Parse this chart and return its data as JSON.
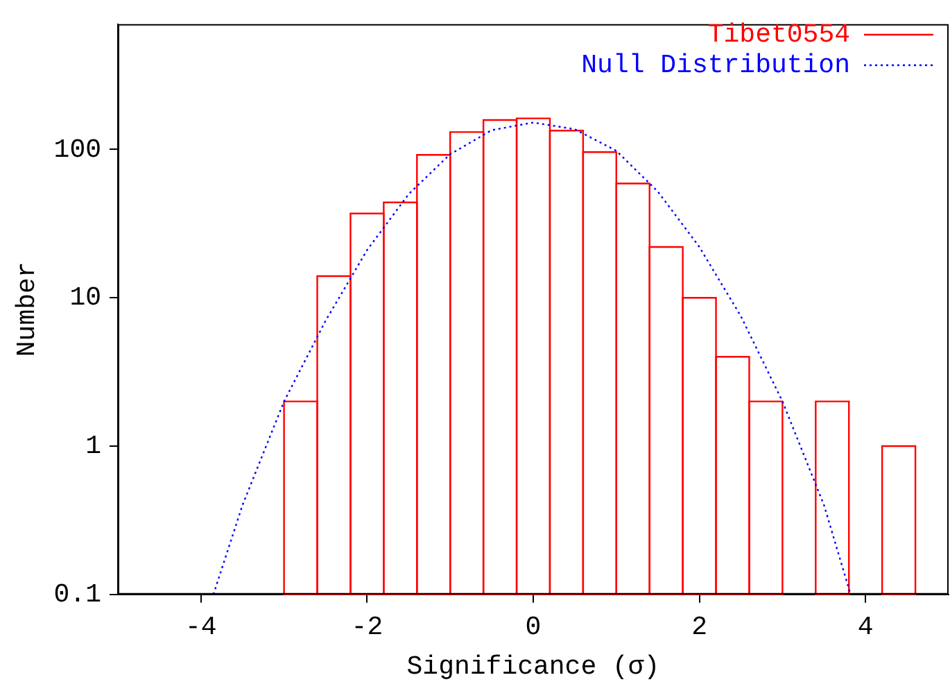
{
  "chart_data": {
    "type": "histogram",
    "xlabel": "Significance (σ)",
    "ylabel": "Number",
    "bins": [
      -3,
      -2.6,
      -2.2,
      -1.8,
      -1.4,
      -1,
      -0.6,
      -0.2,
      0.2,
      0.6,
      1,
      1.4,
      1.8,
      2.2,
      2.6,
      3,
      3.4,
      3.8,
      4.2,
      4.6
    ],
    "series": [
      {
        "name": "Tibet0554",
        "color": "#ff0000",
        "values": [
          2,
          14,
          37,
          44,
          92,
          131,
          158,
          162,
          134,
          96,
          59,
          22,
          10,
          4,
          2,
          null,
          2,
          null,
          1
        ]
      },
      {
        "name": "Null Distribution",
        "type": "line",
        "color": "#0000ff",
        "line_style": "dotted",
        "x": [
          -3.85,
          -3.5,
          -3,
          -2.5,
          -2,
          -1.5,
          -1,
          -0.5,
          0,
          0.5,
          1,
          1.5,
          2,
          2.5,
          3,
          3.5,
          3.82
        ],
        "values": [
          0.1,
          0.4,
          2,
          7,
          21,
          50,
          93,
          135,
          152,
          137,
          98,
          52,
          22,
          7.5,
          2,
          0.4,
          0.1
        ]
      }
    ],
    "xlim": [
      -5,
      5
    ],
    "xticks": [
      -4,
      -2,
      0,
      2,
      4
    ],
    "ylim": [
      0.1,
      700
    ],
    "yticks": [
      0.1,
      1,
      10,
      100
    ],
    "log": "y",
    "grid": false,
    "legend": "top right"
  }
}
